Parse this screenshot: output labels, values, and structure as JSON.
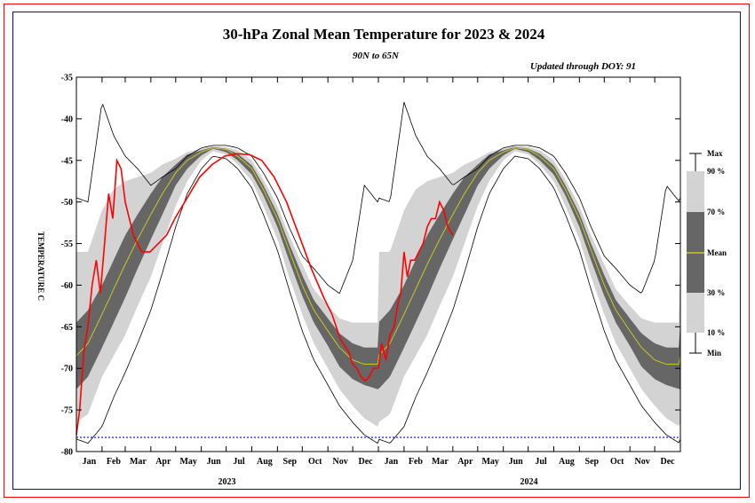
{
  "chart_data": {
    "type": "line",
    "title": "30-hPa Zonal Mean Temperature for 2023 & 2024",
    "subtitle": "90N to 65N",
    "note": "Updated through DOY:  91",
    "ylabel": "TEMPERATURE C",
    "ylim": [
      -80,
      -35
    ],
    "yticks": [
      "-35",
      "-40",
      "-45",
      "-50",
      "-55",
      "-60",
      "-65",
      "-70",
      "-75",
      "-80"
    ],
    "xlim": [
      0,
      730
    ],
    "month_labels": [
      "Jan",
      "Feb",
      "Mar",
      "Apr",
      "May",
      "Jun",
      "Jul",
      "Aug",
      "Sep",
      "Oct",
      "Nov",
      "Dec",
      "Jan",
      "Feb",
      "Mar",
      "Apr",
      "May",
      "Jun",
      "Jul",
      "Aug",
      "Sep",
      "Oct",
      "Nov",
      "Dec"
    ],
    "year_labels": [
      "2023",
      "2024"
    ],
    "reference_line_y": -78.3,
    "climatology": {
      "doy": [
        1,
        15,
        32,
        46,
        60,
        75,
        91,
        105,
        121,
        135,
        152,
        166,
        182,
        196,
        213,
        227,
        244,
        258,
        274,
        288,
        305,
        319,
        335,
        349,
        365
      ],
      "max": [
        -49.5,
        -50,
        -38,
        -42,
        -44.5,
        -46,
        -48,
        -47,
        -46,
        -44.5,
        -43.5,
        -43.2,
        -43.2,
        -43.5,
        -44.5,
        -46.5,
        -49.5,
        -53,
        -56.5,
        -58,
        -60,
        -61,
        -57,
        -48,
        -50
      ],
      "p90": [
        -56,
        -56,
        -51,
        -48.5,
        -47.5,
        -47,
        -46.5,
        -45.5,
        -44.8,
        -44,
        -43.6,
        -43.3,
        -43.4,
        -43.8,
        -45,
        -47.3,
        -50.5,
        -54,
        -57.5,
        -60.5,
        -62.5,
        -64,
        -64.5,
        -64.5,
        -64.5
      ],
      "p70": [
        -64.5,
        -63,
        -60,
        -57,
        -54,
        -51.5,
        -49,
        -47,
        -45.5,
        -44.3,
        -43.8,
        -43.4,
        -43.6,
        -44.2,
        -45.6,
        -48,
        -51.4,
        -55,
        -58.8,
        -61.8,
        -64,
        -65.8,
        -67,
        -67.5,
        -67.5
      ],
      "mean": [
        -68.5,
        -67,
        -63.5,
        -60.5,
        -57.5,
        -54.5,
        -51.5,
        -49,
        -46.5,
        -45,
        -44,
        -43.5,
        -43.7,
        -44.5,
        -46,
        -48.5,
        -52,
        -55.8,
        -60,
        -63,
        -65.5,
        -67.5,
        -69,
        -69.5,
        -69.5
      ],
      "p30": [
        -72.5,
        -71,
        -67.5,
        -64.5,
        -61.5,
        -58,
        -54.5,
        -51.5,
        -48,
        -46,
        -44.4,
        -43.6,
        -44,
        -45,
        -46.7,
        -49.2,
        -53,
        -57,
        -61.3,
        -64.5,
        -67.3,
        -69.8,
        -71.3,
        -72,
        -72.5
      ],
      "p10": [
        -76.5,
        -75.5,
        -71,
        -68.5,
        -66,
        -62.5,
        -59,
        -55,
        -50.5,
        -47.5,
        -45,
        -43.9,
        -44.3,
        -45.5,
        -47.5,
        -50.5,
        -54.5,
        -59,
        -63.5,
        -67,
        -70,
        -72.5,
        -74.5,
        -76,
        -77
      ],
      "min": [
        -78.5,
        -79,
        -77,
        -73.5,
        -70.5,
        -67,
        -63,
        -58.5,
        -53,
        -49,
        -46,
        -44.5,
        -44.8,
        -46,
        -48.3,
        -51.5,
        -55.8,
        -60.5,
        -65.5,
        -69,
        -72,
        -74.5,
        -76.5,
        -78,
        -79
      ]
    },
    "series": [
      {
        "name": "2023",
        "doy": [
          1,
          5,
          10,
          15,
          20,
          25,
          30,
          35,
          40,
          45,
          50,
          55,
          60,
          65,
          70,
          75,
          80,
          90,
          100,
          110,
          120,
          135,
          150,
          165,
          180,
          195,
          210,
          225,
          240,
          255,
          270,
          285,
          300,
          310,
          320,
          330,
          335,
          340,
          345,
          350,
          355,
          360,
          365
        ],
        "values": [
          -78,
          -75,
          -68,
          -65,
          -60,
          -57,
          -61,
          -55,
          -49,
          -52,
          -45,
          -46,
          -50,
          -52,
          -54,
          -55,
          -56,
          -56,
          -55,
          -54,
          -52,
          -49.5,
          -47,
          -45.5,
          -44.5,
          -44.2,
          -44.3,
          -45,
          -47,
          -50,
          -54,
          -58,
          -61.5,
          -63.5,
          -66.5,
          -68,
          -69.5,
          -70,
          -71,
          -71.5,
          -71,
          -70,
          -70
        ]
      },
      {
        "name": "2024",
        "doy": [
          1,
          5,
          10,
          15,
          20,
          25,
          28,
          32,
          36,
          40,
          45,
          50,
          55,
          60,
          65,
          70,
          75,
          80,
          85,
          91
        ],
        "values": [
          -70,
          -67,
          -69,
          -66,
          -65,
          -62,
          -61,
          -56,
          -59,
          -57,
          -57,
          -56,
          -55,
          -53,
          -52,
          -52,
          -50,
          -51,
          -53,
          -54
        ]
      }
    ],
    "legend": {
      "labels": [
        "Max",
        "90 %",
        "70 %",
        "Mean",
        "30 %",
        "10 %",
        "Min"
      ],
      "placement": "right"
    },
    "colors": {
      "band_outer": "#d3d3d3",
      "band_inner": "#666666",
      "mean": "#c8c81e",
      "current": "#ff0000",
      "extremes": "#000000",
      "reference": "#0000ff"
    }
  }
}
